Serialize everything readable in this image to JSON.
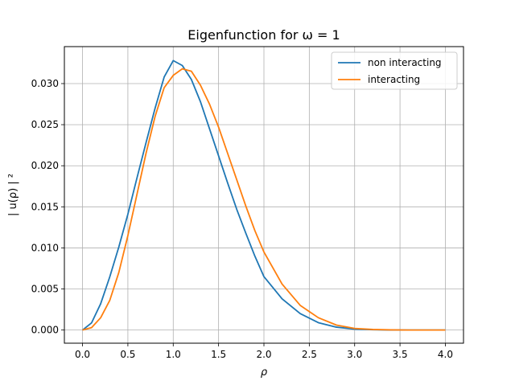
{
  "chart_data": {
    "type": "line",
    "title": "Eigenfunction for ω = 1",
    "xlabel": "ρ",
    "ylabel": "| u(ρ) | ²",
    "xlim": [
      -0.2,
      4.2
    ],
    "ylim": [
      -0.0016,
      0.0345
    ],
    "xticks": [
      0.0,
      0.5,
      1.0,
      1.5,
      2.0,
      2.5,
      3.0,
      3.5,
      4.0
    ],
    "xtick_labels": [
      "0.0",
      "0.5",
      "1.0",
      "1.5",
      "2.0",
      "2.5",
      "3.0",
      "3.5",
      "4.0"
    ],
    "yticks": [
      0.0,
      0.005,
      0.01,
      0.015,
      0.02,
      0.025,
      0.03
    ],
    "ytick_labels": [
      "0.000",
      "0.005",
      "0.010",
      "0.015",
      "0.020",
      "0.025",
      "0.030"
    ],
    "grid": true,
    "legend_position": "top-right",
    "series": [
      {
        "name": "non interacting",
        "color": "#1f77b4",
        "x": [
          0.0,
          0.1,
          0.2,
          0.3,
          0.4,
          0.5,
          0.6,
          0.7,
          0.8,
          0.9,
          1.0,
          1.1,
          1.2,
          1.3,
          1.4,
          1.5,
          1.6,
          1.7,
          1.8,
          1.9,
          2.0,
          2.2,
          2.4,
          2.6,
          2.8,
          3.0,
          3.2,
          3.4,
          3.6,
          3.8,
          4.0
        ],
        "y": [
          0.0,
          0.00088,
          0.0032,
          0.00646,
          0.0101,
          0.0141,
          0.0185,
          0.0228,
          0.027,
          0.0308,
          0.0328,
          0.0322,
          0.0305,
          0.0278,
          0.0245,
          0.0212,
          0.0179,
          0.0147,
          0.0118,
          0.009,
          0.0065,
          0.0038,
          0.002,
          0.0009,
          0.00035,
          0.00012,
          4e-05,
          1e-05,
          0.0,
          0.0,
          0.0
        ]
      },
      {
        "name": "interacting",
        "color": "#ff7f0e",
        "x": [
          0.0,
          0.1,
          0.2,
          0.3,
          0.4,
          0.5,
          0.6,
          0.7,
          0.8,
          0.9,
          1.0,
          1.1,
          1.2,
          1.3,
          1.4,
          1.5,
          1.6,
          1.7,
          1.8,
          1.9,
          2.0,
          2.2,
          2.4,
          2.6,
          2.8,
          3.0,
          3.2,
          3.4,
          3.6,
          3.8,
          4.0
        ],
        "y": [
          0.0,
          0.0003,
          0.0015,
          0.0036,
          0.007,
          0.0115,
          0.0165,
          0.0215,
          0.026,
          0.0295,
          0.031,
          0.0318,
          0.0315,
          0.0298,
          0.0275,
          0.0247,
          0.0215,
          0.0183,
          0.0151,
          0.0121,
          0.0095,
          0.0056,
          0.003,
          0.0015,
          0.0006,
          0.0002,
          7e-05,
          2e-05,
          0.0,
          0.0,
          0.0
        ]
      }
    ]
  }
}
